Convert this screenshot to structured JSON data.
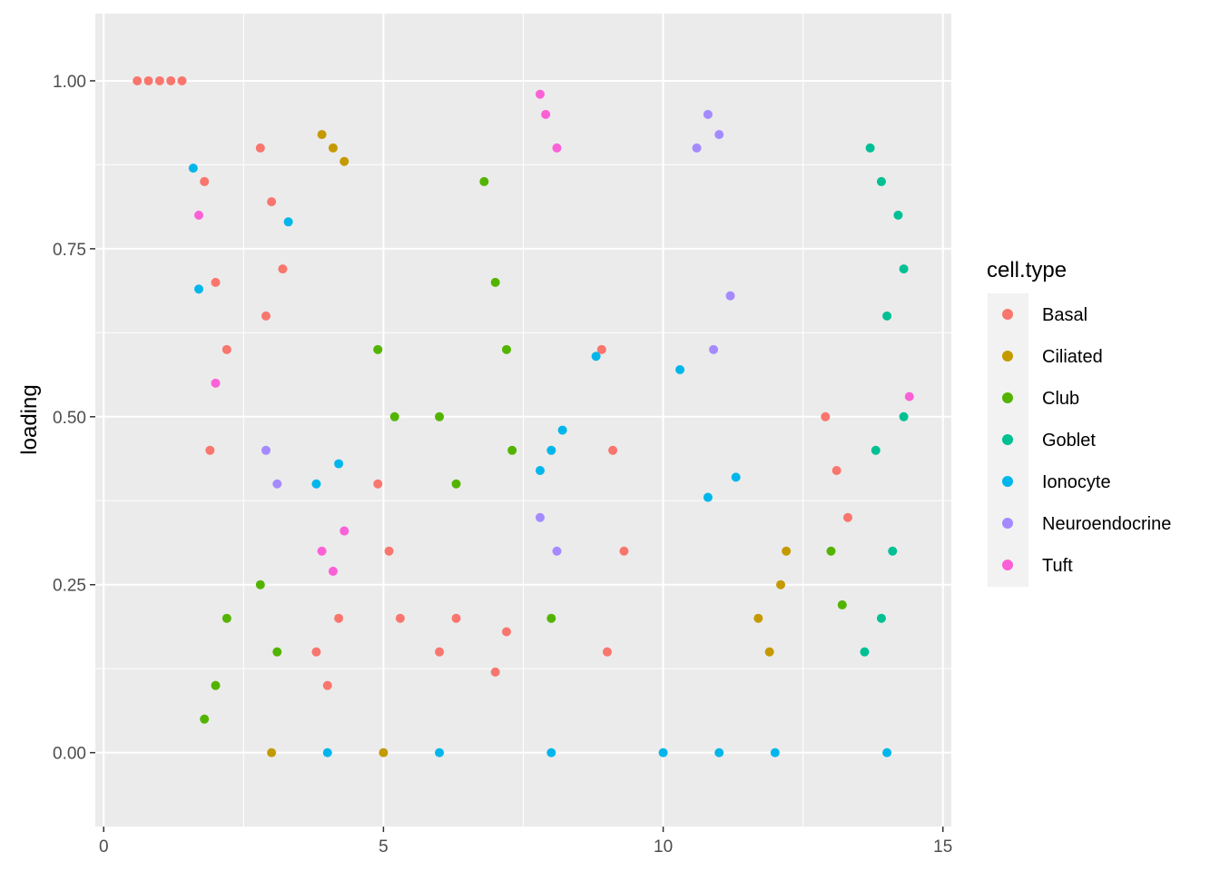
{
  "chart_data": {
    "type": "scatter",
    "title": "",
    "xlabel": "",
    "ylabel": "loading",
    "xlim": [
      -0.15,
      15.15
    ],
    "ylim": [
      -0.11,
      1.1
    ],
    "x_ticks": [
      0,
      5,
      10,
      15
    ],
    "x_tick_labels": [
      "0",
      "5",
      "10",
      "15"
    ],
    "y_ticks": [
      0.0,
      0.25,
      0.5,
      0.75,
      1.0
    ],
    "y_tick_labels": [
      "0.00",
      "0.25",
      "0.50",
      "0.75",
      "1.00"
    ],
    "grid": true,
    "background": "#ebebeb",
    "legend": {
      "title": "cell.type",
      "position": "right",
      "entries": [
        "Basal",
        "Ciliated",
        "Club",
        "Goblet",
        "Ionocyte",
        "Neuroendocrine",
        "Tuft"
      ]
    },
    "colors": {
      "Basal": "#F8766D",
      "Ciliated": "#C49A00",
      "Club": "#53B400",
      "Goblet": "#00C094",
      "Ionocyte": "#00B6EB",
      "Neuroendocrine": "#A58AFF",
      "Tuft": "#FB61D7"
    },
    "series": [
      {
        "name": "Basal",
        "values": [
          {
            "x": 0.6,
            "y": 1.0
          },
          {
            "x": 0.8,
            "y": 1.0
          },
          {
            "x": 1.0,
            "y": 1.0
          },
          {
            "x": 1.2,
            "y": 1.0
          },
          {
            "x": 1.4,
            "y": 1.0
          },
          {
            "x": 1.8,
            "y": 0.85
          },
          {
            "x": 2.0,
            "y": 0.7
          },
          {
            "x": 2.2,
            "y": 0.6
          },
          {
            "x": 1.9,
            "y": 0.45
          },
          {
            "x": 2.8,
            "y": 0.9
          },
          {
            "x": 3.0,
            "y": 0.82
          },
          {
            "x": 3.2,
            "y": 0.72
          },
          {
            "x": 2.9,
            "y": 0.65
          },
          {
            "x": 3.8,
            "y": 0.15
          },
          {
            "x": 4.0,
            "y": 0.1
          },
          {
            "x": 4.2,
            "y": 0.2
          },
          {
            "x": 4.9,
            "y": 0.4
          },
          {
            "x": 5.1,
            "y": 0.3
          },
          {
            "x": 5.3,
            "y": 0.2
          },
          {
            "x": 6.0,
            "y": 0.15
          },
          {
            "x": 6.3,
            "y": 0.2
          },
          {
            "x": 7.0,
            "y": 0.12
          },
          {
            "x": 7.2,
            "y": 0.18
          },
          {
            "x": 8.9,
            "y": 0.6
          },
          {
            "x": 9.1,
            "y": 0.45
          },
          {
            "x": 9.3,
            "y": 0.3
          },
          {
            "x": 9.0,
            "y": 0.15
          },
          {
            "x": 12.9,
            "y": 0.5
          },
          {
            "x": 13.1,
            "y": 0.42
          },
          {
            "x": 13.3,
            "y": 0.35
          }
        ]
      },
      {
        "name": "Ciliated",
        "values": [
          {
            "x": 3.9,
            "y": 0.92
          },
          {
            "x": 4.1,
            "y": 0.9
          },
          {
            "x": 4.3,
            "y": 0.88
          },
          {
            "x": 11.7,
            "y": 0.2
          },
          {
            "x": 11.9,
            "y": 0.15
          },
          {
            "x": 12.1,
            "y": 0.25
          },
          {
            "x": 12.2,
            "y": 0.3
          },
          {
            "x": 3.0,
            "y": 0.0
          },
          {
            "x": 5.0,
            "y": 0.0
          }
        ]
      },
      {
        "name": "Club",
        "values": [
          {
            "x": 1.8,
            "y": 0.05
          },
          {
            "x": 2.0,
            "y": 0.1
          },
          {
            "x": 2.2,
            "y": 0.2
          },
          {
            "x": 2.8,
            "y": 0.25
          },
          {
            "x": 3.1,
            "y": 0.15
          },
          {
            "x": 4.9,
            "y": 0.6
          },
          {
            "x": 5.2,
            "y": 0.5
          },
          {
            "x": 6.0,
            "y": 0.5
          },
          {
            "x": 6.3,
            "y": 0.4
          },
          {
            "x": 6.8,
            "y": 0.85
          },
          {
            "x": 7.0,
            "y": 0.7
          },
          {
            "x": 7.2,
            "y": 0.6
          },
          {
            "x": 7.3,
            "y": 0.45
          },
          {
            "x": 8.0,
            "y": 0.2
          },
          {
            "x": 13.0,
            "y": 0.3
          },
          {
            "x": 13.2,
            "y": 0.22
          }
        ]
      },
      {
        "name": "Goblet",
        "values": [
          {
            "x": 13.7,
            "y": 0.9
          },
          {
            "x": 13.9,
            "y": 0.85
          },
          {
            "x": 14.2,
            "y": 0.8
          },
          {
            "x": 14.0,
            "y": 0.65
          },
          {
            "x": 14.3,
            "y": 0.5
          },
          {
            "x": 13.8,
            "y": 0.45
          },
          {
            "x": 14.1,
            "y": 0.3
          },
          {
            "x": 13.9,
            "y": 0.2
          },
          {
            "x": 14.3,
            "y": 0.72
          },
          {
            "x": 13.6,
            "y": 0.15
          }
        ]
      },
      {
        "name": "Ionocyte",
        "values": [
          {
            "x": 1.6,
            "y": 0.87
          },
          {
            "x": 1.7,
            "y": 0.69
          },
          {
            "x": 3.3,
            "y": 0.79
          },
          {
            "x": 3.8,
            "y": 0.4
          },
          {
            "x": 4.2,
            "y": 0.43
          },
          {
            "x": 8.0,
            "y": 0.45
          },
          {
            "x": 8.2,
            "y": 0.48
          },
          {
            "x": 7.8,
            "y": 0.42
          },
          {
            "x": 8.8,
            "y": 0.59
          },
          {
            "x": 10.3,
            "y": 0.57
          },
          {
            "x": 11.3,
            "y": 0.41
          },
          {
            "x": 10.8,
            "y": 0.38
          },
          {
            "x": 4.0,
            "y": 0.0
          },
          {
            "x": 6.0,
            "y": 0.0
          },
          {
            "x": 8.0,
            "y": 0.0
          },
          {
            "x": 10.0,
            "y": 0.0
          },
          {
            "x": 11.0,
            "y": 0.0
          },
          {
            "x": 12.0,
            "y": 0.0
          },
          {
            "x": 14.0,
            "y": 0.0
          }
        ]
      },
      {
        "name": "Neuroendocrine",
        "values": [
          {
            "x": 2.9,
            "y": 0.45
          },
          {
            "x": 3.1,
            "y": 0.4
          },
          {
            "x": 10.8,
            "y": 0.95
          },
          {
            "x": 11.0,
            "y": 0.92
          },
          {
            "x": 10.6,
            "y": 0.9
          },
          {
            "x": 7.8,
            "y": 0.35
          },
          {
            "x": 8.1,
            "y": 0.3
          },
          {
            "x": 11.2,
            "y": 0.68
          },
          {
            "x": 10.9,
            "y": 0.6
          }
        ]
      },
      {
        "name": "Tuft",
        "values": [
          {
            "x": 7.9,
            "y": 0.95
          },
          {
            "x": 8.1,
            "y": 0.9
          },
          {
            "x": 7.8,
            "y": 0.98
          },
          {
            "x": 3.9,
            "y": 0.3
          },
          {
            "x": 4.1,
            "y": 0.27
          },
          {
            "x": 4.3,
            "y": 0.33
          },
          {
            "x": 1.7,
            "y": 0.8
          },
          {
            "x": 2.0,
            "y": 0.55
          },
          {
            "x": 14.4,
            "y": 0.53
          }
        ]
      }
    ]
  }
}
